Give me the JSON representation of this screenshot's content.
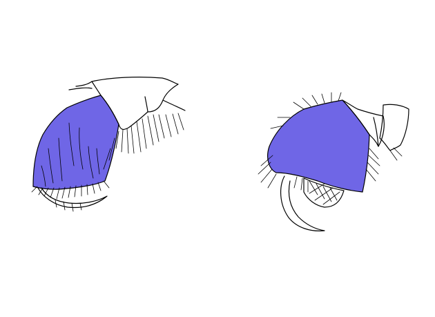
{
  "figure": {
    "background": "#ffffff",
    "highlight_color": "#6f66e6",
    "outline_color": "#000000",
    "panels": [
      {
        "name": "left-appendage"
      },
      {
        "name": "right-appendage"
      }
    ]
  }
}
